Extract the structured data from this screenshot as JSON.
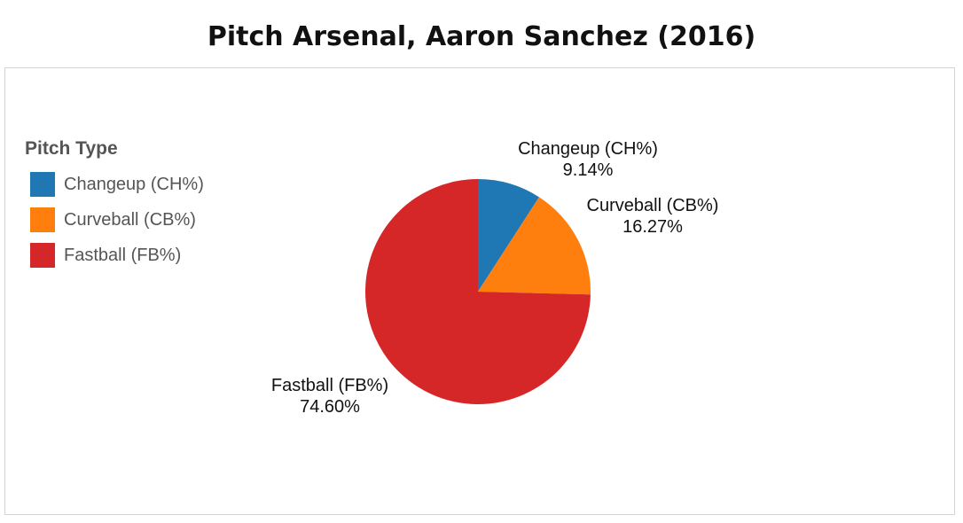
{
  "chart_data": {
    "type": "pie",
    "title": "Pitch Arsenal, Aaron Sanchez (2016)",
    "legend_title": "Pitch Type",
    "legend_position": "left",
    "categories": [
      "Changeup (CH%)",
      "Curveball (CB%)",
      "Fastball (FB%)"
    ],
    "values": [
      9.14,
      16.27,
      74.6
    ],
    "value_labels": [
      "9.14%",
      "16.27%",
      "74.60%"
    ],
    "colors": [
      "#1f77b4",
      "#ff7f0e",
      "#d62728"
    ]
  }
}
